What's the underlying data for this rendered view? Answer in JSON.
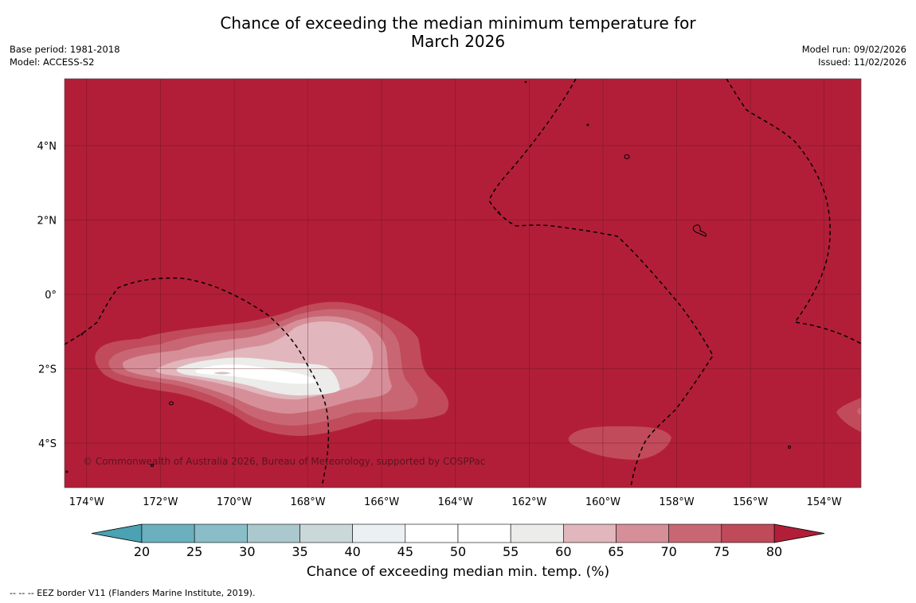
{
  "header": {
    "title_line1": "Chance of exceeding the median minimum temperature for",
    "title_line2": "March 2026",
    "base_period": "Base period: 1981-2018",
    "model": "Model: ACCESS-S2",
    "model_run": "Model run: 09/02/2026",
    "issued": "Issued: 11/02/2026"
  },
  "map": {
    "lon_range": [
      -174.6,
      -153.0
    ],
    "lat_range": [
      -5.2,
      5.8
    ],
    "lon_ticks": [
      {
        "value": -174,
        "label": "174°W"
      },
      {
        "value": -172,
        "label": "172°W"
      },
      {
        "value": -170,
        "label": "170°W"
      },
      {
        "value": -168,
        "label": "168°W"
      },
      {
        "value": -166,
        "label": "166°W"
      },
      {
        "value": -164,
        "label": "164°W"
      },
      {
        "value": -162,
        "label": "162°W"
      },
      {
        "value": -160,
        "label": "160°W"
      },
      {
        "value": -158,
        "label": "158°W"
      },
      {
        "value": -156,
        "label": "156°W"
      },
      {
        "value": -154,
        "label": "154°W"
      }
    ],
    "lat_ticks": [
      {
        "value": 4,
        "label": "4°N"
      },
      {
        "value": 2,
        "label": "2°N"
      },
      {
        "value": 0,
        "label": "0°"
      },
      {
        "value": -2,
        "label": "2°S"
      },
      {
        "value": -4,
        "label": "4°S"
      }
    ],
    "background_color": "#b21e38",
    "copyright": "© Commonwealth of Australia 2026, Bureau of Meteorology, supported by COSPPac"
  },
  "colorbar": {
    "ticks": [
      "20",
      "25",
      "30",
      "35",
      "40",
      "45",
      "50",
      "55",
      "60",
      "65",
      "70",
      "75",
      "80"
    ],
    "colors": [
      "#6ab0be",
      "#89bdc7",
      "#aac8cd",
      "#cbd8da",
      "#ebf1f2",
      "#ffffff",
      "#ffffff",
      "#ececea",
      "#e1b6bc",
      "#d68f99",
      "#c86773",
      "#bf4a5a"
    ],
    "under_color": "#4aa2b2",
    "over_color": "#b21e38",
    "title": "Chance of exceeding median min. temp. (%)"
  },
  "footnote": "--  --  -- EEZ border V11 (Flanders Marine Institute, 2019)."
}
